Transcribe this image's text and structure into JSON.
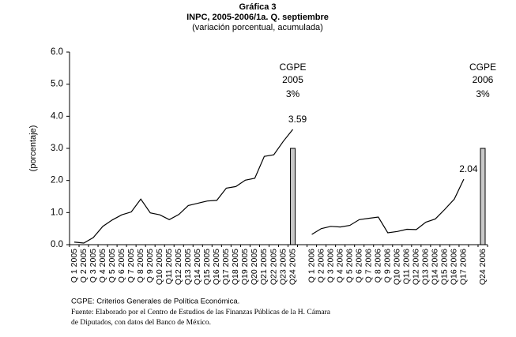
{
  "chart_data": {
    "type": "line",
    "title": "Gráfica 3",
    "subtitle": "INPC, 2005-2006/1a. Q. septiembre",
    "subtitle2": "(variación porcentual, acumulada)",
    "y_label": "(porcentaje)",
    "categories": [
      "Q 1 2005",
      "Q 2 2005",
      "Q 3 2005",
      "Q 4 2005",
      "Q 5 2005",
      "Q 6 2005",
      "Q 7 2005",
      "Q 8 2005",
      "Q 9 2005",
      "Q10 2005",
      "Q11 2005",
      "Q12 2005",
      "Q13 2005",
      "Q14 2005",
      "Q15 2005",
      "Q16 2005",
      "Q17 2005",
      "Q18 2005",
      "Q19 2005",
      "Q20 2005",
      "Q21 2005",
      "Q22 2005",
      "Q23 2005",
      "Q24 2005",
      null,
      "Q 1 2006",
      "Q 2 2006",
      "Q 3 2006",
      "Q 4 2006",
      "Q 5 2006",
      "Q 6 2006",
      "Q 7 2006",
      "Q 8 2006",
      "Q 9 2006",
      "Q10 2006",
      "Q11 2006",
      "Q12 2006",
      "Q13 2006",
      "Q14 2006",
      "Q15 2006",
      "Q16 2006",
      "Q17 2006",
      null,
      "Q24 2006"
    ],
    "series": [
      {
        "type": "line",
        "color": "#000000",
        "values": [
          0.08,
          0.05,
          0.22,
          0.57,
          0.77,
          0.93,
          1.02,
          1.42,
          0.99,
          0.93,
          0.78,
          0.94,
          1.22,
          1.29,
          1.36,
          1.38,
          1.76,
          1.81,
          2.01,
          2.07,
          2.75,
          2.8,
          3.22,
          3.59,
          null,
          0.32,
          0.5,
          0.57,
          0.55,
          0.6,
          0.78,
          0.82,
          0.86,
          0.37,
          0.41,
          0.48,
          0.47,
          0.7,
          0.8,
          1.1,
          1.42,
          2.04,
          null,
          null
        ],
        "labeled": [
          23,
          41
        ]
      },
      {
        "type": "bar",
        "color": "#c8c8c8",
        "values": [
          null,
          null,
          null,
          null,
          null,
          null,
          null,
          null,
          null,
          null,
          null,
          null,
          null,
          null,
          null,
          null,
          null,
          null,
          null,
          null,
          null,
          null,
          null,
          3,
          null,
          null,
          null,
          null,
          null,
          null,
          null,
          null,
          null,
          null,
          null,
          null,
          null,
          null,
          null,
          null,
          null,
          null,
          null,
          3
        ],
        "value_labels": [
          null,
          null,
          null,
          null,
          null,
          null,
          null,
          null,
          null,
          null,
          null,
          null,
          null,
          null,
          null,
          null,
          null,
          null,
          null,
          null,
          null,
          null,
          null,
          "3%",
          null,
          null,
          null,
          null,
          null,
          null,
          null,
          null,
          null,
          null,
          null,
          null,
          null,
          null,
          null,
          null,
          null,
          null,
          null,
          "3%"
        ],
        "annotations": [
          {
            "index": 23,
            "lines": [
              "CGPE",
              "2005"
            ]
          },
          {
            "index": 43,
            "lines": [
              "CGPE",
              "2006"
            ]
          }
        ]
      }
    ],
    "ylim": [
      0,
      6
    ],
    "yticks": [
      {
        "value": 0,
        "label": "0.0"
      },
      {
        "value": 1,
        "label": "1.0"
      },
      {
        "value": 2,
        "label": "2.0"
      },
      {
        "value": 3,
        "label": "3.0"
      },
      {
        "value": 4,
        "label": "4.0"
      },
      {
        "value": 5,
        "label": "5.0"
      },
      {
        "value": 6,
        "label": "6.0"
      }
    ],
    "notes": [
      "CGPE: Criterios Generales de Política Económica.",
      "Fuente: Elaborado por el Centro de Estudios de las Finanzas Públicas de la H. Cámara",
      "de Diputados, con  datos del Banco de México."
    ]
  }
}
